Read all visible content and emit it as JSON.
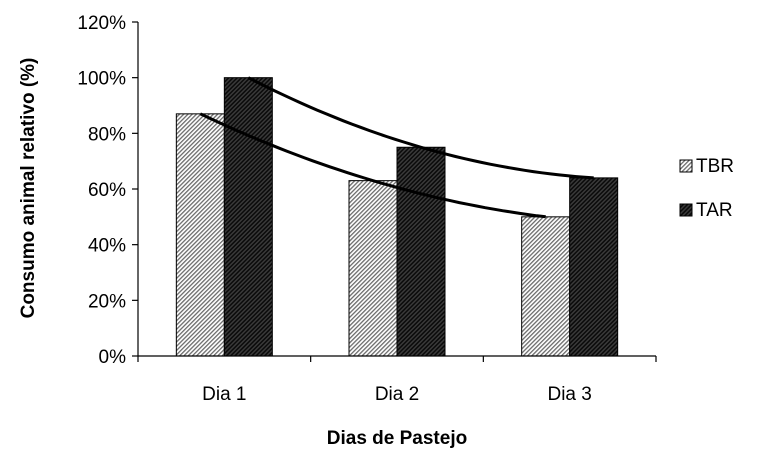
{
  "chart_data": {
    "type": "bar",
    "categories": [
      "Dia 1",
      "Dia 2",
      "Dia 3"
    ],
    "series": [
      {
        "name": "TBR",
        "values": [
          87,
          63,
          50
        ],
        "pattern": "light-hatch"
      },
      {
        "name": "TAR",
        "values": [
          100,
          75,
          64
        ],
        "pattern": "dark-hatch"
      }
    ],
    "trendlines": [
      {
        "series": "TBR",
        "values": [
          87,
          63,
          50
        ]
      },
      {
        "series": "TAR",
        "values": [
          100,
          75,
          64
        ]
      }
    ],
    "xlabel": "Dias de Pastejo",
    "ylabel": "Consumo animal relativo (%)",
    "ylim": [
      0,
      120
    ],
    "yticks": [
      "0%",
      "20%",
      "40%",
      "60%",
      "80%",
      "100%",
      "120%"
    ],
    "ytick_values": [
      0,
      20,
      40,
      60,
      80,
      100,
      120
    ],
    "grid": false,
    "legend_position": "right"
  }
}
